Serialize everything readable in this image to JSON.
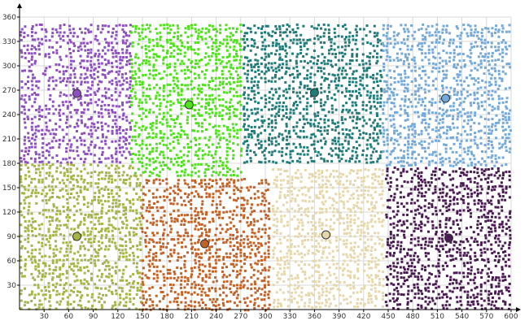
{
  "chart_data": {
    "type": "scatter",
    "xlim": [
      0,
      600
    ],
    "ylim": [
      0,
      360
    ],
    "x_ticks": [
      30,
      60,
      90,
      120,
      150,
      180,
      210,
      240,
      270,
      300,
      330,
      360,
      390,
      420,
      450,
      480,
      510,
      540,
      570,
      600
    ],
    "y_ticks": [
      30,
      60,
      90,
      120,
      150,
      180,
      210,
      240,
      270,
      300,
      330,
      360
    ],
    "grid": true,
    "legend": "none",
    "clusters": [
      {
        "color": "#8e4fc0",
        "centroid": [
          70,
          266
        ],
        "bounds": {
          "x": [
            0,
            135
          ],
          "y": [
            180,
            352
          ]
        }
      },
      {
        "color": "#4ee21a",
        "centroid": [
          207,
          252
        ],
        "bounds": {
          "x": [
            135,
            272
          ],
          "y": [
            162,
            352
          ]
        }
      },
      {
        "color": "#1f7c78",
        "centroid": [
          360,
          267
        ],
        "bounds": {
          "x": [
            272,
            442
          ],
          "y": [
            180,
            352
          ]
        }
      },
      {
        "color": "#72a8da",
        "centroid": [
          520,
          260
        ],
        "bounds": {
          "x": [
            442,
            600
          ],
          "y": [
            176,
            352
          ]
        }
      },
      {
        "color": "#a6b446",
        "centroid": [
          70,
          90
        ],
        "bounds": {
          "x": [
            0,
            148
          ],
          "y": [
            0,
            180
          ]
        }
      },
      {
        "color": "#c46226",
        "centroid": [
          226,
          81
        ],
        "bounds": {
          "x": [
            148,
            308
          ],
          "y": [
            0,
            162
          ]
        }
      },
      {
        "color": "#e6d7aa",
        "centroid": [
          374,
          92
        ],
        "bounds": {
          "x": [
            308,
            446
          ],
          "y": [
            0,
            174
          ]
        }
      },
      {
        "color": "#4a1a52",
        "centroid": [
          524,
          88
        ],
        "bounds": {
          "x": [
            446,
            600
          ],
          "y": [
            0,
            176
          ]
        }
      }
    ]
  }
}
